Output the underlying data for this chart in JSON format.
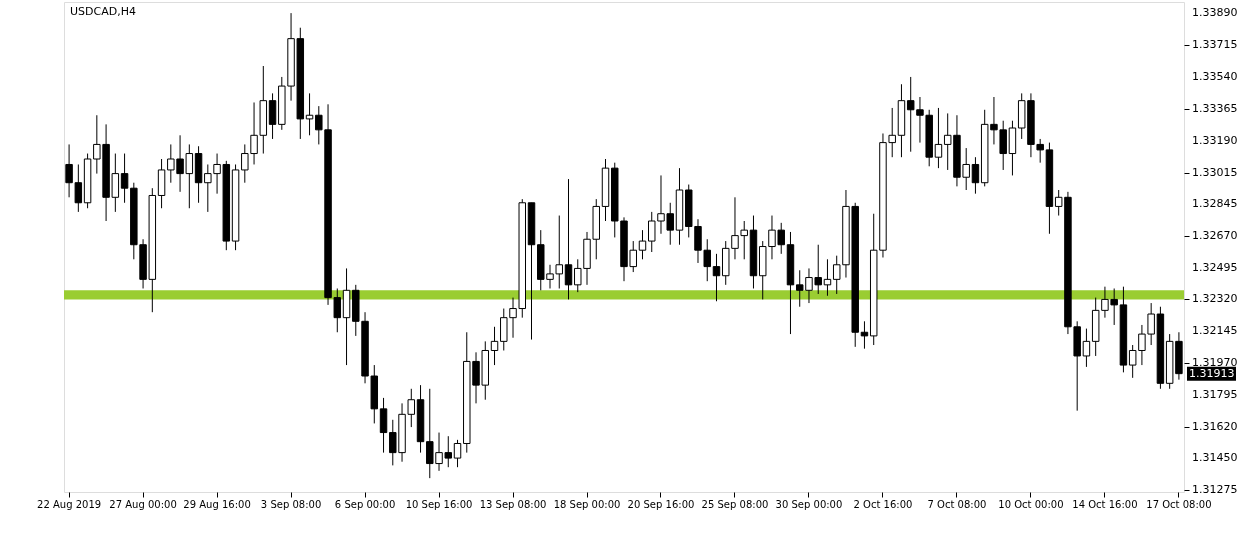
{
  "chart_data": {
    "type": "candlestick",
    "title": "USDCAD,H4",
    "categories": [
      "22 Aug 2019",
      null,
      null,
      null,
      null,
      null,
      null,
      null,
      "27 Aug 00:00",
      null,
      null,
      null,
      null,
      null,
      null,
      null,
      "29 Aug 16:00",
      null,
      null,
      null,
      null,
      null,
      null,
      null,
      "3 Sep 08:00",
      null,
      null,
      null,
      null,
      null,
      null,
      null,
      "6 Sep 00:00",
      null,
      null,
      null,
      null,
      null,
      null,
      null,
      "10 Sep 16:00",
      null,
      null,
      null,
      null,
      null,
      null,
      null,
      "13 Sep 08:00",
      null,
      null,
      null,
      null,
      null,
      null,
      null,
      "18 Sep 00:00",
      null,
      null,
      null,
      null,
      null,
      null,
      null,
      "20 Sep 16:00",
      null,
      null,
      null,
      null,
      null,
      null,
      null,
      "25 Sep 08:00",
      null,
      null,
      null,
      null,
      null,
      null,
      null,
      "30 Sep 00:00",
      null,
      null,
      null,
      null,
      null,
      null,
      null,
      "2 Oct 16:00",
      null,
      null,
      null,
      null,
      null,
      null,
      null,
      "7 Oct 08:00",
      null,
      null,
      null,
      null,
      null,
      null,
      null,
      "10 Oct 00:00",
      null,
      null,
      null,
      null,
      null,
      null,
      null,
      "14 Oct 16:00",
      null,
      null,
      null,
      null,
      null,
      null,
      null,
      "17 Oct 08:00"
    ],
    "ohlc": [
      [
        1.3306,
        1.3317,
        1.3288,
        1.3296
      ],
      [
        1.3296,
        1.3306,
        1.328,
        1.3285
      ],
      [
        1.3285,
        1.3312,
        1.3282,
        1.3309
      ],
      [
        1.3309,
        1.3333,
        1.3301,
        1.3317
      ],
      [
        1.3317,
        1.3328,
        1.3275,
        1.3288
      ],
      [
        1.3288,
        1.3312,
        1.328,
        1.3301
      ],
      [
        1.3301,
        1.3312,
        1.3285,
        1.3293
      ],
      [
        1.3293,
        1.3296,
        1.3254,
        1.3262
      ],
      [
        1.3262,
        1.3265,
        1.3238,
        1.3243
      ],
      [
        1.3243,
        1.3293,
        1.3225,
        1.3289
      ],
      [
        1.3289,
        1.3309,
        1.3282,
        1.3303
      ],
      [
        1.3303,
        1.3317,
        1.3296,
        1.3309
      ],
      [
        1.3309,
        1.3322,
        1.3291,
        1.3301
      ],
      [
        1.3301,
        1.3317,
        1.3282,
        1.3312
      ],
      [
        1.3312,
        1.3316,
        1.3285,
        1.3296
      ],
      [
        1.3296,
        1.3306,
        1.328,
        1.3301
      ],
      [
        1.3301,
        1.3312,
        1.329,
        1.3306
      ],
      [
        1.3306,
        1.3308,
        1.3259,
        1.3264
      ],
      [
        1.3264,
        1.3306,
        1.3259,
        1.3303
      ],
      [
        1.3303,
        1.3317,
        1.3296,
        1.3312
      ],
      [
        1.3312,
        1.334,
        1.3306,
        1.3322
      ],
      [
        1.3322,
        1.336,
        1.3312,
        1.3341
      ],
      [
        1.3341,
        1.3345,
        1.332,
        1.3328
      ],
      [
        1.3328,
        1.3354,
        1.3325,
        1.3349
      ],
      [
        1.3349,
        1.3389,
        1.3341,
        1.3375
      ],
      [
        1.3375,
        1.3381,
        1.332,
        1.3331
      ],
      [
        1.3331,
        1.3345,
        1.3322,
        1.3333
      ],
      [
        1.3333,
        1.3338,
        1.3317,
        1.3325
      ],
      [
        1.3325,
        1.3339,
        1.3229,
        1.3233
      ],
      [
        1.3233,
        1.3238,
        1.3214,
        1.3222
      ],
      [
        1.3222,
        1.3249,
        1.3196,
        1.3237
      ],
      [
        1.3237,
        1.324,
        1.3212,
        1.322
      ],
      [
        1.322,
        1.3225,
        1.3186,
        1.319
      ],
      [
        1.319,
        1.3196,
        1.3164,
        1.3172
      ],
      [
        1.3172,
        1.3178,
        1.3148,
        1.3159
      ],
      [
        1.3159,
        1.3166,
        1.3141,
        1.3148
      ],
      [
        1.3148,
        1.3175,
        1.3143,
        1.3169
      ],
      [
        1.3169,
        1.3183,
        1.3162,
        1.3177
      ],
      [
        1.3177,
        1.3185,
        1.3148,
        1.3154
      ],
      [
        1.3154,
        1.3183,
        1.3134,
        1.3142
      ],
      [
        1.3142,
        1.3159,
        1.3138,
        1.3148
      ],
      [
        1.3148,
        1.3157,
        1.314,
        1.3145
      ],
      [
        1.3145,
        1.3155,
        1.314,
        1.3153
      ],
      [
        1.3153,
        1.3214,
        1.3148,
        1.3198
      ],
      [
        1.3198,
        1.3203,
        1.3175,
        1.3185
      ],
      [
        1.3185,
        1.3209,
        1.3177,
        1.3204
      ],
      [
        1.3204,
        1.3217,
        1.3196,
        1.3209
      ],
      [
        1.3209,
        1.3227,
        1.3204,
        1.3222
      ],
      [
        1.3222,
        1.3233,
        1.3211,
        1.3227
      ],
      [
        1.3227,
        1.3287,
        1.3222,
        1.3285
      ],
      [
        1.3285,
        1.3285,
        1.321,
        1.3262
      ],
      [
        1.3262,
        1.327,
        1.3237,
        1.3243
      ],
      [
        1.3243,
        1.3251,
        1.3238,
        1.3246
      ],
      [
        1.3246,
        1.3278,
        1.3238,
        1.3251
      ],
      [
        1.3251,
        1.3298,
        1.3232,
        1.324
      ],
      [
        1.324,
        1.3254,
        1.3236,
        1.3249
      ],
      [
        1.3249,
        1.3269,
        1.324,
        1.3265
      ],
      [
        1.3265,
        1.3287,
        1.3254,
        1.3283
      ],
      [
        1.3283,
        1.3309,
        1.3275,
        1.3304
      ],
      [
        1.3304,
        1.3307,
        1.3266,
        1.3275
      ],
      [
        1.3275,
        1.3277,
        1.3242,
        1.325
      ],
      [
        1.325,
        1.3264,
        1.3247,
        1.3259
      ],
      [
        1.3259,
        1.327,
        1.3254,
        1.3264
      ],
      [
        1.3264,
        1.328,
        1.3258,
        1.3275
      ],
      [
        1.3275,
        1.33,
        1.3268,
        1.3279
      ],
      [
        1.3279,
        1.3285,
        1.3262,
        1.327
      ],
      [
        1.327,
        1.3304,
        1.3262,
        1.3292
      ],
      [
        1.3292,
        1.3295,
        1.3266,
        1.3272
      ],
      [
        1.3272,
        1.3276,
        1.3252,
        1.3259
      ],
      [
        1.3259,
        1.3265,
        1.3242,
        1.325
      ],
      [
        1.325,
        1.3257,
        1.3231,
        1.3245
      ],
      [
        1.3245,
        1.3264,
        1.324,
        1.326
      ],
      [
        1.326,
        1.3288,
        1.3254,
        1.3267
      ],
      [
        1.3267,
        1.3275,
        1.3254,
        1.327
      ],
      [
        1.327,
        1.3278,
        1.3238,
        1.3245
      ],
      [
        1.3245,
        1.3264,
        1.3232,
        1.3261
      ],
      [
        1.3261,
        1.3278,
        1.3254,
        1.327
      ],
      [
        1.327,
        1.3274,
        1.3257,
        1.3262
      ],
      [
        1.3262,
        1.3269,
        1.3213,
        1.324
      ],
      [
        1.324,
        1.3248,
        1.3228,
        1.3237
      ],
      [
        1.3237,
        1.3249,
        1.323,
        1.3244
      ],
      [
        1.3244,
        1.3262,
        1.3235,
        1.324
      ],
      [
        1.324,
        1.3254,
        1.3234,
        1.3243
      ],
      [
        1.3243,
        1.3256,
        1.3235,
        1.3251
      ],
      [
        1.3251,
        1.3292,
        1.3244,
        1.3283
      ],
      [
        1.3283,
        1.3285,
        1.3206,
        1.3214
      ],
      [
        1.3214,
        1.322,
        1.3205,
        1.3212
      ],
      [
        1.3212,
        1.3279,
        1.3207,
        1.3259
      ],
      [
        1.3259,
        1.3323,
        1.3255,
        1.3318
      ],
      [
        1.3318,
        1.3337,
        1.331,
        1.3322
      ],
      [
        1.3322,
        1.335,
        1.331,
        1.3341
      ],
      [
        1.3341,
        1.3354,
        1.3313,
        1.3336
      ],
      [
        1.3336,
        1.3343,
        1.3318,
        1.3333
      ],
      [
        1.3333,
        1.3336,
        1.3305,
        1.331
      ],
      [
        1.331,
        1.3337,
        1.3304,
        1.3317
      ],
      [
        1.3317,
        1.3334,
        1.3303,
        1.3322
      ],
      [
        1.3322,
        1.3333,
        1.3294,
        1.3299
      ],
      [
        1.3299,
        1.3315,
        1.3292,
        1.3306
      ],
      [
        1.3306,
        1.331,
        1.329,
        1.3296
      ],
      [
        1.3296,
        1.3336,
        1.3294,
        1.3328
      ],
      [
        1.3328,
        1.3343,
        1.3317,
        1.3325
      ],
      [
        1.3325,
        1.333,
        1.3303,
        1.3312
      ],
      [
        1.3312,
        1.333,
        1.33,
        1.3326
      ],
      [
        1.3326,
        1.3345,
        1.332,
        1.3341
      ],
      [
        1.3341,
        1.3345,
        1.331,
        1.3317
      ],
      [
        1.3317,
        1.332,
        1.3307,
        1.3314
      ],
      [
        1.3314,
        1.3318,
        1.3268,
        1.3283
      ],
      [
        1.3283,
        1.3292,
        1.3278,
        1.3288
      ],
      [
        1.3288,
        1.3291,
        1.3213,
        1.3217
      ],
      [
        1.3217,
        1.322,
        1.3171,
        1.3201
      ],
      [
        1.3201,
        1.3216,
        1.3195,
        1.3209
      ],
      [
        1.3209,
        1.3233,
        1.3201,
        1.3226
      ],
      [
        1.3226,
        1.3239,
        1.3222,
        1.3232
      ],
      [
        1.3232,
        1.3238,
        1.3218,
        1.3229
      ],
      [
        1.3229,
        1.3239,
        1.3192,
        1.3196
      ],
      [
        1.3196,
        1.3207,
        1.3189,
        1.3204
      ],
      [
        1.3204,
        1.3218,
        1.3196,
        1.3213
      ],
      [
        1.3213,
        1.323,
        1.3207,
        1.3224
      ],
      [
        1.3224,
        1.3228,
        1.3183,
        1.3186
      ],
      [
        1.3186,
        1.3213,
        1.3183,
        1.3209
      ],
      [
        1.3209,
        1.3214,
        1.3188,
        1.31913
      ]
    ],
    "ylim": [
      1.31264,
      1.33951
    ],
    "yticks": [
      {
        "value": 1.3389,
        "label": "1.33890"
      },
      {
        "value": 1.33715,
        "label": "1.33715"
      },
      {
        "value": 1.3354,
        "label": "1.33540"
      },
      {
        "value": 1.33365,
        "label": "1.33365"
      },
      {
        "value": 1.3319,
        "label": "1.33190"
      },
      {
        "value": 1.33015,
        "label": "1.33015"
      },
      {
        "value": 1.32845,
        "label": "1.32845"
      },
      {
        "value": 1.3267,
        "label": "1.32670"
      },
      {
        "value": 1.32495,
        "label": "1.32495"
      },
      {
        "value": 1.3232,
        "label": "1.32320"
      },
      {
        "value": 1.32145,
        "label": "1.32145"
      },
      {
        "value": 1.3197,
        "label": "1.31970"
      },
      {
        "value": 1.31795,
        "label": "1.31795"
      },
      {
        "value": 1.3162,
        "label": "1.31620"
      },
      {
        "value": 1.3145,
        "label": "1.31450"
      },
      {
        "value": 1.31275,
        "label": "1.31275"
      }
    ],
    "bands": [
      {
        "axis": "y",
        "from": 1.3232,
        "to": 1.3237,
        "color": "#9acd32"
      }
    ],
    "annotations": [
      "1.31913"
    ]
  }
}
